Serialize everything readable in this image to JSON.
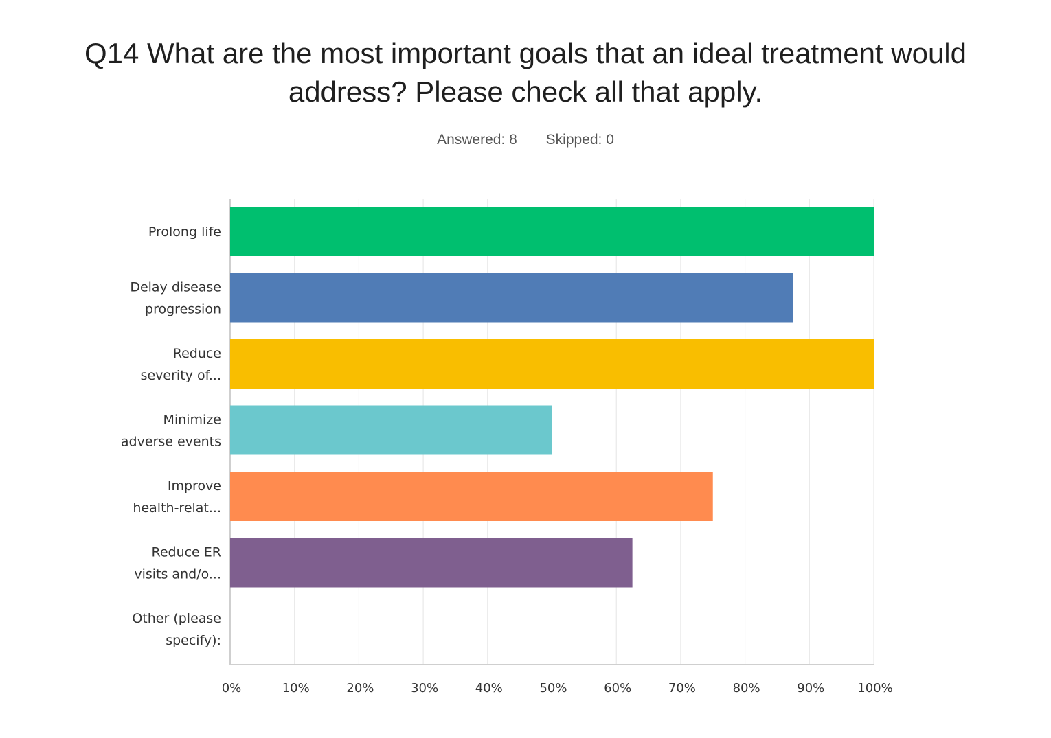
{
  "title_lines": [
    "Q14 What are the most important goals that an ideal treatment would",
    "address? Please check all that apply."
  ],
  "stats": {
    "answered": "Answered: 8",
    "skipped": "Skipped: 0"
  },
  "chart_data": {
    "type": "bar",
    "orientation": "horizontal",
    "categories": [
      [
        "Prolong life"
      ],
      [
        "Delay disease",
        "progression"
      ],
      [
        "Reduce",
        "severity of..."
      ],
      [
        "Minimize",
        "adverse events"
      ],
      [
        "Improve",
        "health-relat..."
      ],
      [
        "Reduce ER",
        "visits and/o..."
      ],
      [
        "Other (please",
        "specify):"
      ]
    ],
    "values": [
      100,
      87.5,
      100,
      50,
      75,
      62.5,
      0
    ],
    "colors": [
      "#00bf6f",
      "#507cb6",
      "#f9be00",
      "#6bc8cd",
      "#ff8b4f",
      "#7f5f8f",
      "#999999"
    ],
    "xlim": [
      0,
      100
    ],
    "ticks": [
      "0%",
      "10%",
      "20%",
      "30%",
      "40%",
      "50%",
      "60%",
      "70%",
      "80%",
      "90%",
      "100%"
    ],
    "grid": true,
    "xlabel": "",
    "ylabel": ""
  }
}
